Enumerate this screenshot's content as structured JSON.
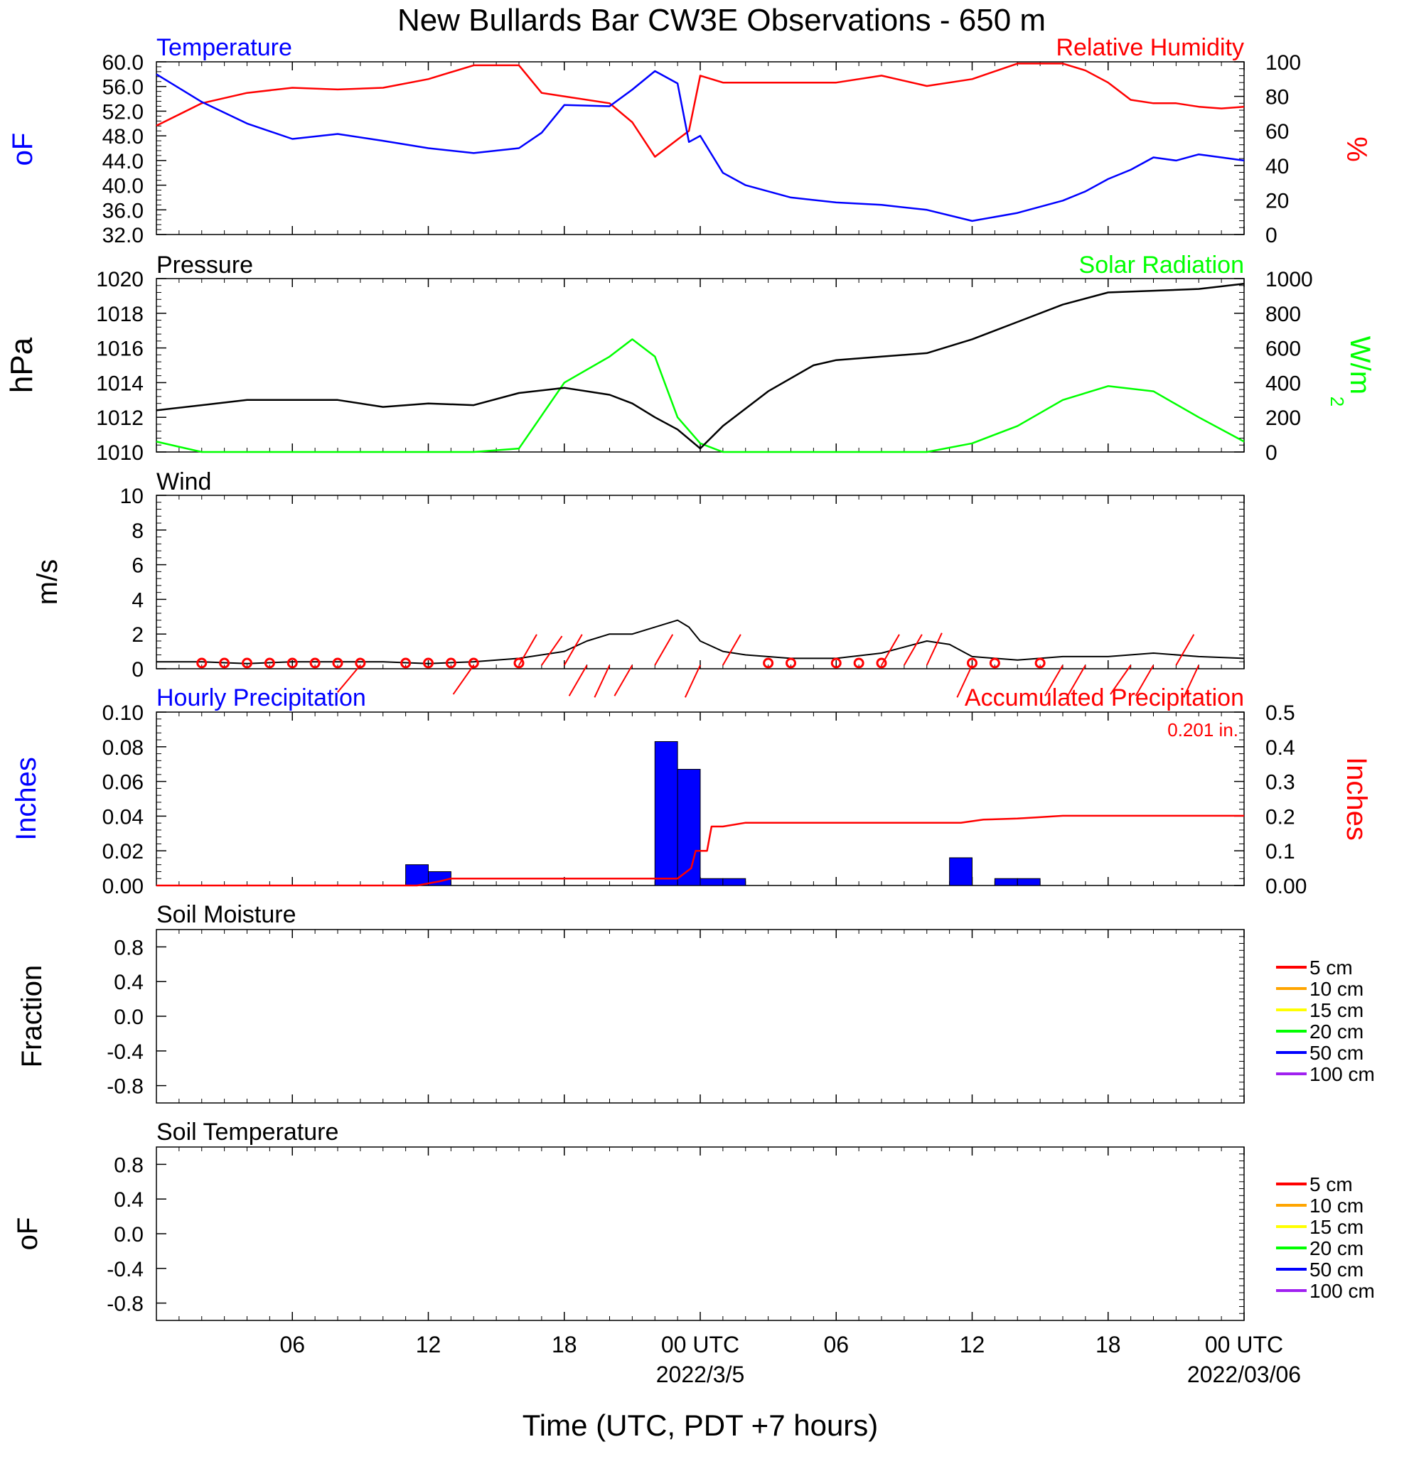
{
  "chart_data": [
    {
      "type": "line",
      "panel": "temperature_humidity",
      "title": "New Bullards Bar CW3E Observations - 650 m",
      "left_label": "Temperature",
      "right_label": "Relative Humidity",
      "left_unit": "oF",
      "right_unit": "%",
      "left_ylim": [
        32.0,
        60.0
      ],
      "right_ylim": [
        0,
        100
      ],
      "left_ticks": [
        "60.0",
        "56.0",
        "52.0",
        "48.0",
        "44.0",
        "40.0",
        "36.0",
        "32.0"
      ],
      "right_ticks": [
        "100",
        "80",
        "60",
        "40",
        "20",
        "0"
      ],
      "x_hours": [
        0,
        2,
        4,
        6,
        8,
        10,
        12,
        14,
        16,
        17,
        18,
        20,
        21,
        22,
        23,
        23.5,
        24,
        25,
        26,
        28,
        30,
        32,
        34,
        36,
        38,
        40,
        41,
        42,
        43,
        44,
        45,
        46,
        47,
        48
      ],
      "series": [
        {
          "name": "Temperature",
          "color": "#0000ff",
          "values": [
            58,
            53.5,
            50,
            47.5,
            48.3,
            47.2,
            46,
            45.2,
            46,
            48.5,
            53,
            52.8,
            55.5,
            58.5,
            56.5,
            47,
            48,
            42,
            40,
            38,
            37.2,
            36.8,
            36,
            34.2,
            35.5,
            37.5,
            39,
            41,
            42.5,
            44.5,
            44,
            45,
            44.5,
            44
          ]
        },
        {
          "name": "Relative Humidity",
          "color": "#ff0000",
          "values": [
            63,
            76,
            82,
            85,
            84,
            85,
            90,
            98,
            98,
            82,
            80,
            76,
            65,
            45,
            55,
            60,
            92,
            88,
            88,
            88,
            88,
            92,
            86,
            90,
            99,
            99,
            95,
            88,
            78,
            76,
            76,
            74,
            73,
            74
          ]
        }
      ]
    },
    {
      "type": "line",
      "panel": "pressure_solar",
      "left_label": "Pressure",
      "right_label": "Solar Radiation",
      "left_unit": "hPa",
      "right_unit": "W/m",
      "right_unit_sup": "2",
      "left_ylim": [
        1010,
        1020
      ],
      "right_ylim": [
        0,
        1000
      ],
      "left_ticks": [
        "1020",
        "1018",
        "1016",
        "1014",
        "1012",
        "1010"
      ],
      "right_ticks": [
        "1000",
        "800",
        "600",
        "400",
        "200",
        "0"
      ],
      "x_hours": [
        0,
        2,
        4,
        6,
        8,
        10,
        12,
        14,
        16,
        18,
        20,
        21,
        22,
        23,
        24,
        25,
        27,
        29,
        30,
        32,
        34,
        36,
        38,
        40,
        42,
        44,
        46,
        48
      ],
      "series": [
        {
          "name": "Pressure",
          "color": "#000000",
          "values": [
            1012.4,
            1012.7,
            1013.0,
            1013.0,
            1013.0,
            1012.6,
            1012.8,
            1012.7,
            1013.4,
            1013.7,
            1013.3,
            1012.8,
            1012.0,
            1011.3,
            1010.2,
            1011.5,
            1013.5,
            1015.0,
            1015.3,
            1015.5,
            1015.7,
            1016.5,
            1017.5,
            1018.5,
            1019.2,
            1019.3,
            1019.4,
            1019.7
          ]
        },
        {
          "name": "Solar Radiation",
          "color": "#00ff00",
          "values": [
            60,
            0,
            0,
            0,
            0,
            0,
            0,
            0,
            20,
            400,
            550,
            650,
            550,
            200,
            50,
            0,
            0,
            0,
            0,
            0,
            0,
            50,
            150,
            300,
            380,
            350,
            200,
            60
          ]
        }
      ]
    },
    {
      "type": "line",
      "panel": "wind",
      "label": "Wind",
      "unit": "m/s",
      "ylim": [
        0,
        10
      ],
      "ticks": [
        "10",
        "8",
        "6",
        "4",
        "2",
        "0"
      ],
      "x_hours": [
        0,
        2,
        4,
        6,
        8,
        10,
        12,
        14,
        16,
        17,
        18,
        19,
        20,
        21,
        22,
        22.5,
        23,
        23.5,
        24,
        25,
        26,
        28,
        30,
        32,
        34,
        35,
        36,
        38,
        40,
        42,
        44,
        46,
        48
      ],
      "series": [
        {
          "name": "Wind",
          "color": "#000000",
          "values": [
            0.4,
            0.4,
            0.3,
            0.4,
            0.4,
            0.4,
            0.3,
            0.4,
            0.6,
            0.8,
            1.0,
            1.6,
            2.0,
            2.0,
            2.4,
            2.6,
            2.8,
            2.4,
            1.6,
            1.0,
            0.8,
            0.6,
            0.6,
            0.9,
            1.6,
            1.4,
            0.7,
            0.5,
            0.7,
            0.7,
            0.9,
            0.7,
            0.6
          ]
        }
      ],
      "barb_color": "#ff0000"
    },
    {
      "type": "bar",
      "panel": "precipitation",
      "left_label": "Hourly Precipitation",
      "right_label": "Accumulated Precipitation",
      "total_label": "0.201 in.",
      "left_unit": "Inches",
      "right_unit": "Inches",
      "left_ylim": [
        0,
        0.1
      ],
      "right_ylim": [
        0,
        0.5
      ],
      "left_ticks": [
        "0.10",
        "0.08",
        "0.06",
        "0.04",
        "0.02",
        "0.00"
      ],
      "right_ticks": [
        "0.5",
        "0.4",
        "0.3",
        "0.2",
        "0.1",
        "0.00"
      ],
      "bar_color": "#0000ff",
      "hourly_bars": [
        {
          "hour": 12,
          "value": 0.012
        },
        {
          "hour": 13,
          "value": 0.008
        },
        {
          "hour": 23,
          "value": 0.083
        },
        {
          "hour": 24,
          "value": 0.067
        },
        {
          "hour": 25,
          "value": 0.004
        },
        {
          "hour": 26,
          "value": 0.004
        },
        {
          "hour": 36,
          "value": 0.016
        },
        {
          "hour": 38,
          "value": 0.004
        },
        {
          "hour": 39,
          "value": 0.004
        }
      ],
      "series": [
        {
          "name": "Accumulated Precipitation",
          "color": "#ff0000",
          "x_hours": [
            0,
            11.5,
            12.5,
            13,
            23,
            23.6,
            23.8,
            24.3,
            24.5,
            25,
            26,
            35.5,
            36.5,
            38,
            39,
            40,
            48
          ],
          "values": [
            0,
            0,
            0.012,
            0.02,
            0.02,
            0.05,
            0.1,
            0.1,
            0.17,
            0.17,
            0.181,
            0.181,
            0.19,
            0.193,
            0.197,
            0.201,
            0.201
          ]
        }
      ]
    },
    {
      "type": "line",
      "panel": "soil_moisture",
      "label": "Soil Moisture",
      "unit": "Fraction",
      "ylim": [
        -1.0,
        1.0
      ],
      "ticks": [
        "0.8",
        "0.4",
        "0.0",
        "-0.4",
        "-0.8"
      ],
      "series": [
        {
          "name": "5 cm",
          "color": "#ff0000",
          "values": []
        },
        {
          "name": "10 cm",
          "color": "#ffa500",
          "values": []
        },
        {
          "name": "15 cm",
          "color": "#ffff00",
          "values": []
        },
        {
          "name": "20 cm",
          "color": "#00ff00",
          "values": []
        },
        {
          "name": "50 cm",
          "color": "#0000ff",
          "values": []
        },
        {
          "name": "100 cm",
          "color": "#a020f0",
          "values": []
        }
      ]
    },
    {
      "type": "line",
      "panel": "soil_temperature",
      "label": "Soil Temperature",
      "unit": "oF",
      "ylim": [
        -1.0,
        1.0
      ],
      "ticks": [
        "0.8",
        "0.4",
        "0.0",
        "-0.4",
        "-0.8"
      ],
      "series": [
        {
          "name": "5 cm",
          "color": "#ff0000",
          "values": []
        },
        {
          "name": "10 cm",
          "color": "#ffa500",
          "values": []
        },
        {
          "name": "15 cm",
          "color": "#ffff00",
          "values": []
        },
        {
          "name": "20 cm",
          "color": "#00ff00",
          "values": []
        },
        {
          "name": "50 cm",
          "color": "#0000ff",
          "values": []
        },
        {
          "name": "100 cm",
          "color": "#a020f0",
          "values": []
        }
      ]
    }
  ],
  "x_axis": {
    "xlim_hours": [
      0,
      48
    ],
    "tick_hours": [
      6,
      12,
      18,
      24,
      30,
      36,
      42,
      48
    ],
    "tick_labels": [
      "06",
      "12",
      "18",
      "00 UTC",
      "06",
      "12",
      "18",
      "00 UTC"
    ],
    "date_labels": [
      {
        "hour": 24,
        "text": "2022/3/5"
      },
      {
        "hour": 48,
        "text": "2022/03/06"
      }
    ],
    "xlabel": "Time (UTC, PDT +7 hours)"
  }
}
